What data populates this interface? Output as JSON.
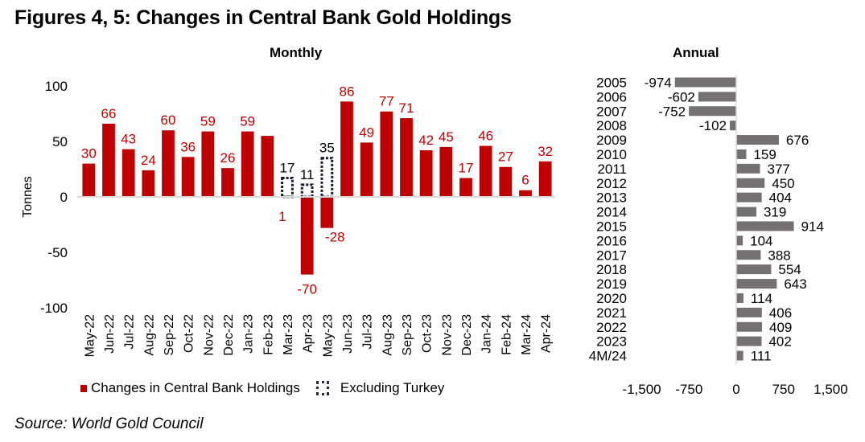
{
  "title": "Figures 4, 5: Changes in Central Bank Gold Holdings",
  "source": "Source: World Gold Council",
  "colors": {
    "bar_red": "#c00000",
    "label_red": "#c00000",
    "bar_gray": "#767171",
    "axis": "#d9d9d9"
  },
  "chart_data": [
    {
      "type": "bar",
      "title": "Monthly",
      "ylabel": "Tonnes",
      "xlabel": "",
      "ylim": [
        -100,
        100
      ],
      "yticks": [
        100,
        50,
        0,
        -50,
        -100
      ],
      "grid": false,
      "legend_position": "bottom",
      "categories": [
        "May-22",
        "Jun-22",
        "Jul-22",
        "Aug-22",
        "Sep-22",
        "Oct-22",
        "Nov-22",
        "Dec-22",
        "Jan-23",
        "Feb-23",
        "Mar-23",
        "Apr-23",
        "May-23",
        "Jun-23",
        "Jul-23",
        "Aug-23",
        "Sep-23",
        "Oct-23",
        "Nov-23",
        "Dec-23",
        "Jan-24",
        "Feb-24",
        "Mar-24",
        "Apr-24"
      ],
      "series": [
        {
          "name": "Changes in Central Bank Holdings",
          "style": "solid",
          "values": [
            30,
            66,
            43,
            24,
            60,
            36,
            59,
            26,
            59,
            55,
            1,
            -70,
            -28,
            86,
            49,
            77,
            71,
            42,
            45,
            17,
            46,
            27,
            6,
            32
          ],
          "labels": [
            "30",
            "66",
            "43",
            "24",
            "60",
            "36",
            "59",
            "26",
            "59",
            "",
            "1",
            "-70",
            "-28",
            "86",
            "49",
            "77",
            "71",
            "42",
            "45",
            "17",
            "46",
            "27",
            "6",
            "32"
          ]
        },
        {
          "name": "Excluding Turkey",
          "style": "dotted-outline",
          "values": [
            null,
            null,
            null,
            null,
            null,
            null,
            null,
            null,
            null,
            null,
            17,
            11,
            35,
            null,
            null,
            null,
            null,
            null,
            null,
            null,
            null,
            null,
            null,
            null
          ],
          "labels": [
            "",
            "",
            "",
            "",
            "",
            "",
            "",
            "",
            "",
            "",
            "17",
            "11",
            "35",
            "",
            "",
            "",
            "",
            "",
            "",
            "",
            "",
            "",
            "",
            ""
          ]
        }
      ]
    },
    {
      "type": "bar",
      "orientation": "horizontal",
      "title": "Annual",
      "xlabel": "",
      "ylabel": "",
      "xlim": [
        -1500,
        1500
      ],
      "xticks": [
        "-1,500",
        "-750",
        "0",
        "750",
        "1,500"
      ],
      "xtick_values": [
        -1500,
        -750,
        0,
        750,
        1500
      ],
      "grid": false,
      "categories": [
        "2005",
        "2006",
        "2007",
        "2008",
        "2009",
        "2010",
        "2011",
        "2012",
        "2013",
        "2014",
        "2015",
        "2016",
        "2017",
        "2018",
        "2019",
        "2020",
        "2021",
        "2022",
        "2023",
        "4M/24"
      ],
      "values": [
        -974,
        -602,
        -752,
        -102,
        676,
        159,
        377,
        450,
        404,
        319,
        914,
        104,
        388,
        554,
        643,
        114,
        406,
        409,
        402,
        111
      ]
    }
  ]
}
